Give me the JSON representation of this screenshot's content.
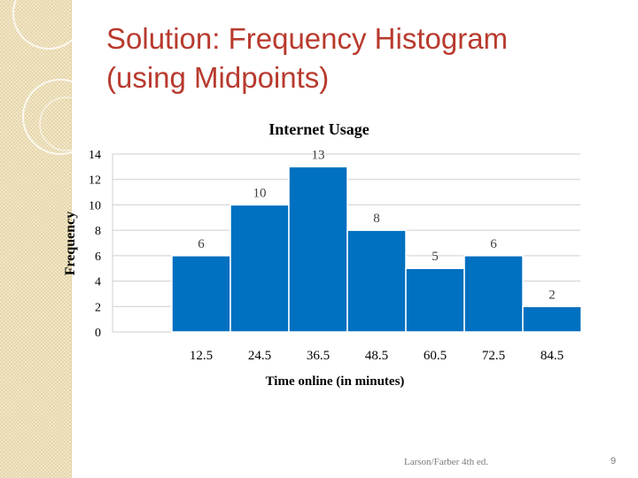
{
  "slide": {
    "title_line1": "Solution: Frequency Histogram",
    "title_line2": "(using Midpoints)",
    "footer": "Larson/Farber 4th ed.",
    "page_number": "9"
  },
  "colors": {
    "title": "#b83a2e",
    "bar_fill": "#0070c0",
    "bar_stroke": "#ffffff",
    "sidebar": "#f2e6c3"
  },
  "chart_data": {
    "type": "bar",
    "title": "Internet Usage",
    "xlabel": "Time online (in minutes)",
    "ylabel": "Frequency",
    "categories": [
      "12.5",
      "24.5",
      "36.5",
      "48.5",
      "60.5",
      "72.5",
      "84.5"
    ],
    "values": [
      6,
      10,
      13,
      8,
      5,
      6,
      2
    ],
    "yticks": [
      "0",
      "2",
      "4",
      "6",
      "8",
      "10",
      "12",
      "14"
    ],
    "ylim": [
      0,
      14
    ],
    "grid": true,
    "data_labels": true,
    "legend": "none"
  }
}
